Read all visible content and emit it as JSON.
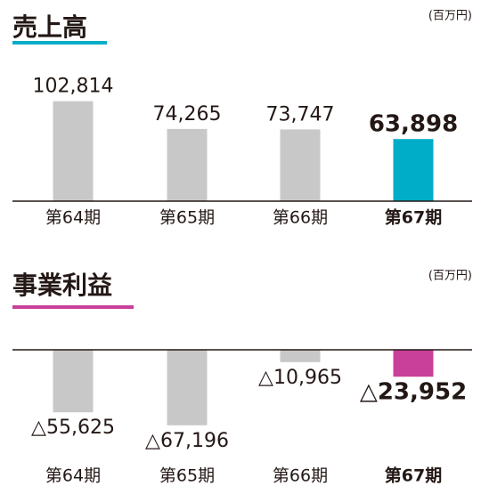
{
  "chart_data": [
    {
      "type": "bar",
      "title": "売上高",
      "unit": "(百万円)",
      "categories": [
        "第64期",
        "第65期",
        "第66期",
        "第67期"
      ],
      "values": [
        102814,
        74265,
        73747,
        63898
      ],
      "value_labels": [
        "102,814",
        "74,265",
        "73,747",
        "63,898"
      ],
      "colors": [
        "#c8c8c8",
        "#c8c8c8",
        "#c8c8c8",
        "#00adc9"
      ],
      "ylim": [
        0,
        130000
      ]
    },
    {
      "type": "bar",
      "title": "事業利益",
      "unit": "(百万円)",
      "categories": [
        "第64期",
        "第65期",
        "第66期",
        "第67期"
      ],
      "values": [
        -55625,
        -67196,
        -10965,
        -23952
      ],
      "value_labels": [
        "△55,625",
        "△67,196",
        "△10,965",
        "△23,952"
      ],
      "colors": [
        "#c8c8c8",
        "#c8c8c8",
        "#c8c8c8",
        "#c8409a"
      ],
      "ylim": [
        -80000,
        0
      ]
    }
  ]
}
